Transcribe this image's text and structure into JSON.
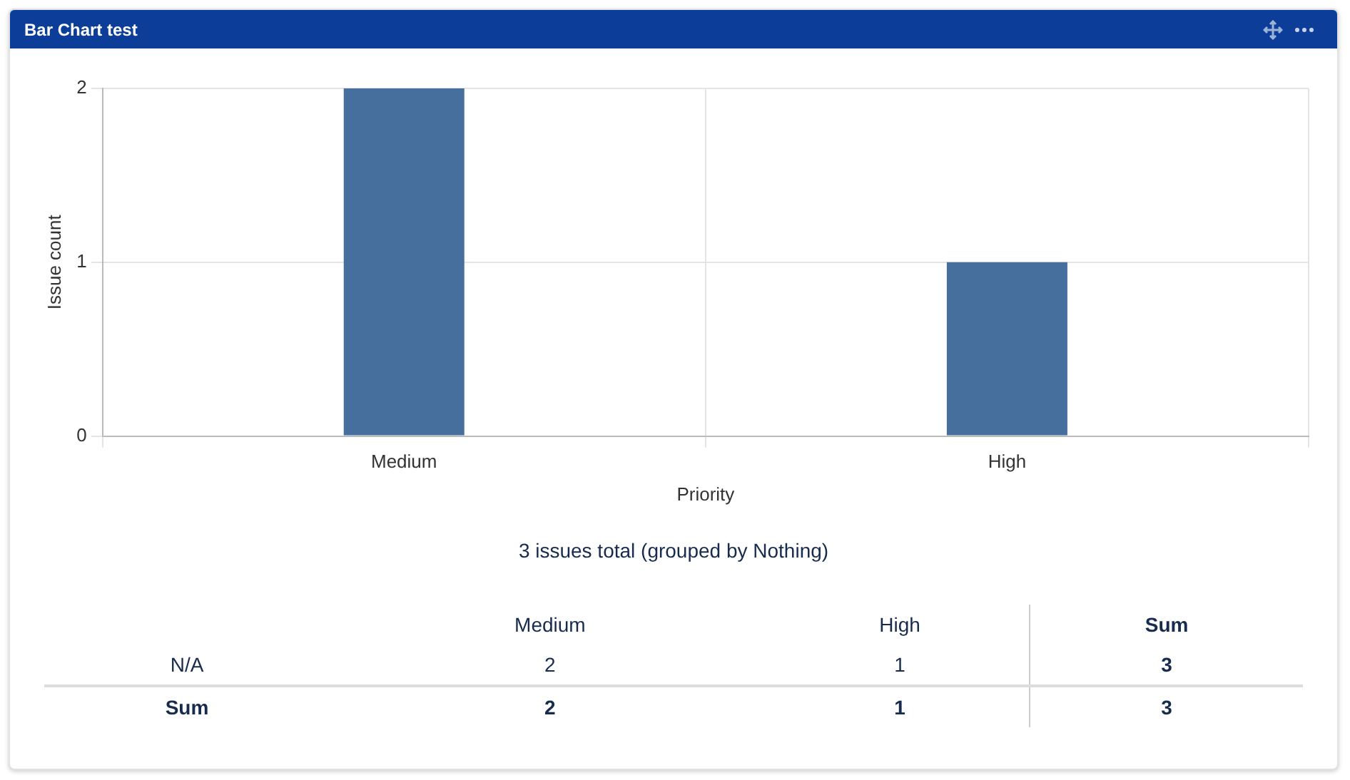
{
  "chart_data": {
    "type": "bar",
    "title": "Bar Chart test",
    "categories": [
      "Medium",
      "High"
    ],
    "values": [
      2,
      1
    ],
    "color": "#466f9d",
    "ylim": [
      0,
      2
    ],
    "yticks": [
      0,
      1,
      2
    ],
    "xlabel": "Priority",
    "ylabel": "Issue count",
    "grid": true,
    "data_labels": true,
    "annotations": [
      "3 issues total (grouped by Nothing)",
      "N/A",
      "Sum",
      "3",
      "2",
      "1"
    ]
  }
}
